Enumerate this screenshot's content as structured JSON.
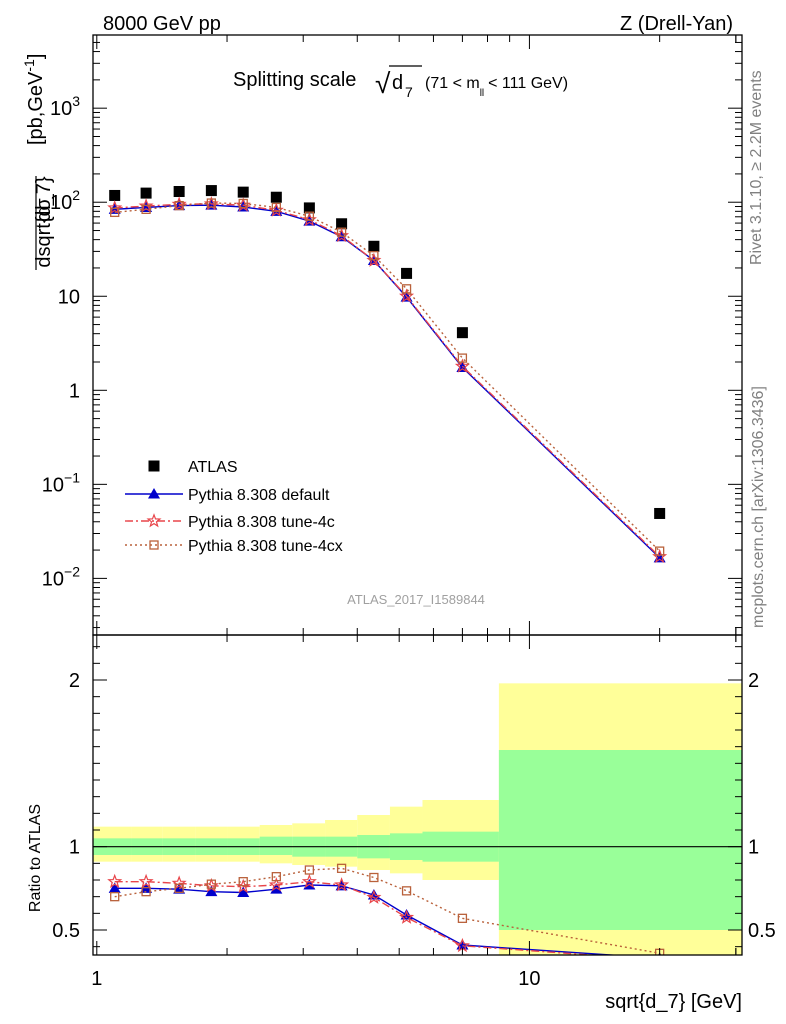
{
  "header": {
    "left": "8000 GeV pp",
    "right": "Z (Drell-Yan)"
  },
  "side_text": {
    "rivet": "Rivet 3.1.10, ≥ 2.2M events",
    "mcplots": "mcplots.cern.ch [arXiv:1306.3436]"
  },
  "chart_data": {
    "type": "line",
    "title": "Splitting scale",
    "title_symbol": "√d",
    "title_symbol_sub": "7",
    "title_cut": "(71 < m",
    "title_cut_sub": "ll",
    "title_cut_end": "< 111 GeV)",
    "watermark": "ATLAS_2017_I1589844",
    "ylabel_num": "dσ",
    "ylabel_den": "dsqrt{d_7}",
    "ylabel_units": "[pb,GeV",
    "ylabel_units_sup": "-1",
    "ylabel_units_end": "]",
    "xlabel": "sqrt{d_7} [GeV]",
    "ratio_ylabel": "Ratio to ATLAS",
    "xlim": [
      0.98,
      31
    ],
    "ylim": [
      0.0025,
      6000
    ],
    "ratio_ylim": [
      0.35,
      2.27
    ],
    "x_ticks": [
      "1",
      "10"
    ],
    "y_ticks": [
      {
        "base": "10",
        "exp": "−2"
      },
      {
        "base": "10",
        "exp": "−1"
      },
      {
        "base": "1",
        "exp": ""
      },
      {
        "base": "10",
        "exp": ""
      },
      {
        "base": "10",
        "exp": "2"
      },
      {
        "base": "10",
        "exp": "3"
      }
    ],
    "ratio_ticks": [
      "0.5",
      "1",
      "2"
    ],
    "x": [
      1.1,
      1.3,
      1.55,
      1.84,
      2.18,
      2.6,
      3.1,
      3.68,
      4.37,
      5.2,
      7.0,
      20.0
    ],
    "bin_edges": [
      0.98,
      1.2,
      1.42,
      1.69,
      2.0,
      2.38,
      2.83,
      3.37,
      4.0,
      4.76,
      5.66,
      8.5,
      31
    ],
    "series": [
      {
        "name": "ATLAS",
        "marker": "square",
        "color": "#000000",
        "values": [
          118,
          125,
          130,
          133,
          128,
          113,
          87,
          59,
          34,
          17.5,
          4.1,
          0.049
        ]
      },
      {
        "name": "Pythia 8.308 default",
        "marker": "triangle",
        "color": "#0000cc",
        "values": [
          84,
          88,
          92,
          93,
          89,
          80,
          63,
          43,
          24,
          9.8,
          1.75,
          0.0165
        ]
      },
      {
        "name": "Pythia 8.308 tune-4c",
        "marker": "star",
        "color": "#e8454a",
        "values": [
          87,
          91,
          95,
          96,
          93,
          82,
          65,
          44,
          24,
          10,
          1.8,
          0.017
        ]
      },
      {
        "name": "Pythia 8.308 tune-4cx",
        "marker": "open-square",
        "color": "#b9613b",
        "values": [
          78,
          84,
          92,
          98,
          97,
          88,
          71,
          48,
          27,
          12,
          2.2,
          0.0195
        ]
      }
    ],
    "ratio_series": [
      {
        "name": "Pythia 8.308 default",
        "values": [
          0.75,
          0.75,
          0.745,
          0.73,
          0.725,
          0.745,
          0.77,
          0.765,
          0.71,
          0.59,
          0.41,
          0.33
        ]
      },
      {
        "name": "Pythia 8.308 tune-4c",
        "values": [
          0.79,
          0.79,
          0.78,
          0.765,
          0.76,
          0.77,
          0.79,
          0.77,
          0.695,
          0.575,
          0.405,
          0.32
        ]
      },
      {
        "name": "Pythia 8.308 tune-4cx",
        "values": [
          0.7,
          0.73,
          0.75,
          0.775,
          0.79,
          0.82,
          0.86,
          0.87,
          0.815,
          0.735,
          0.57,
          0.36
        ]
      }
    ],
    "ratio_bands": {
      "green": [
        [
          0.95,
          1.05
        ],
        [
          0.95,
          1.05
        ],
        [
          0.95,
          1.05
        ],
        [
          0.95,
          1.05
        ],
        [
          0.95,
          1.05
        ],
        [
          0.95,
          1.06
        ],
        [
          0.94,
          1.06
        ],
        [
          0.94,
          1.06
        ],
        [
          0.93,
          1.07
        ],
        [
          0.92,
          1.08
        ],
        [
          0.91,
          1.09
        ],
        [
          0.5,
          1.58
        ]
      ],
      "yellow": [
        [
          0.91,
          1.12
        ],
        [
          0.91,
          1.12
        ],
        [
          0.91,
          1.12
        ],
        [
          0.91,
          1.12
        ],
        [
          0.91,
          1.12
        ],
        [
          0.9,
          1.13
        ],
        [
          0.89,
          1.14
        ],
        [
          0.88,
          1.16
        ],
        [
          0.86,
          1.19
        ],
        [
          0.84,
          1.24
        ],
        [
          0.8,
          1.28
        ],
        [
          0.35,
          1.98
        ]
      ]
    },
    "colors": {
      "band_green": "#99ff99",
      "band_yellow": "#ffff99"
    },
    "legend_position": "lower-left"
  }
}
